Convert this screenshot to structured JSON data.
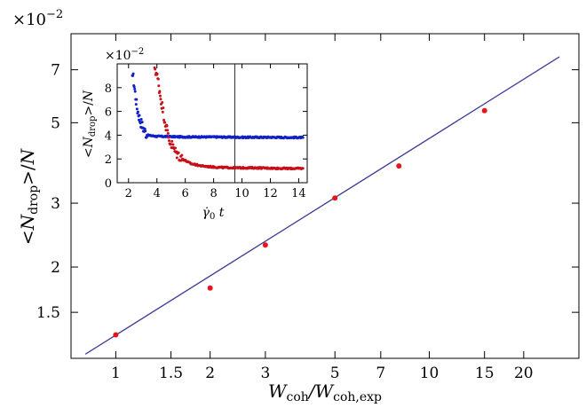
{
  "chart_data": [
    {
      "type": "scatter",
      "role": "main",
      "scale": {
        "x": "log",
        "y": "log"
      },
      "exponent_label": "×10",
      "exponent_value": "−2",
      "xlabel": "W_coh/W_coh,exp",
      "ylabel": "<N_drop>/N",
      "x_ticks": [
        1,
        1.5,
        2,
        3,
        5,
        7,
        10,
        15,
        20
      ],
      "x_tick_labels": [
        "1",
        "1.5",
        "2",
        "3",
        "5",
        "7",
        "10",
        "15",
        "20"
      ],
      "y_ticks": [
        1.5,
        2,
        3,
        5,
        7
      ],
      "y_tick_labels": [
        "1.5",
        "2",
        "3",
        "5",
        "7"
      ],
      "xlim": [
        0.72,
        30
      ],
      "ylim": [
        1.12,
        8.8
      ],
      "colors": {
        "points": "#e8141c",
        "fit": "#3f3f95"
      },
      "series": [
        {
          "kind": "points",
          "x": [
            1,
            2,
            3,
            5,
            8,
            15
          ],
          "y": [
            1.3,
            1.75,
            2.3,
            3.1,
            3.8,
            5.4
          ]
        },
        {
          "kind": "line",
          "x": [
            0.8,
            26
          ],
          "y": [
            1.15,
            7.6
          ]
        }
      ]
    },
    {
      "type": "scatter",
      "role": "inset",
      "exponent_label": "×10",
      "exponent_value": "−2",
      "xlabel": "γ̇₀ t",
      "ylabel": "<N_drop>/N",
      "x_ticks": [
        2,
        4,
        6,
        8,
        10,
        12,
        14
      ],
      "x_tick_labels": [
        "2",
        "4",
        "6",
        "8",
        "10",
        "12",
        "14"
      ],
      "y_ticks": [
        0,
        2,
        4,
        6,
        8
      ],
      "y_tick_labels": [
        "0",
        "2",
        "4",
        "6",
        "8"
      ],
      "xlim": [
        1.2,
        14.6
      ],
      "ylim": [
        0,
        10
      ],
      "vertical_line_x": 9.5,
      "colors": {
        "blue": "#1020c8",
        "red": "#c81018",
        "vline": "#000000"
      },
      "series": [
        {
          "color": "blue",
          "x": [
            2.2,
            2.4,
            2.6,
            2.8,
            3.0,
            3.3,
            4,
            6,
            8,
            10,
            12,
            14.3
          ],
          "y": [
            10,
            8.2,
            6.3,
            5.3,
            4.7,
            4.0,
            3.9,
            3.85,
            3.85,
            3.82,
            3.82,
            3.8
          ]
        },
        {
          "color": "red",
          "x": [
            3.8,
            4.1,
            4.3,
            4.6,
            4.9,
            5.3,
            5.8,
            6.4,
            7.2,
            8.2,
            9.5,
            11,
            13,
            14.3
          ],
          "y": [
            10,
            8.5,
            6.9,
            5.0,
            3.5,
            2.6,
            2.0,
            1.6,
            1.4,
            1.3,
            1.25,
            1.25,
            1.2,
            1.2
          ]
        }
      ]
    }
  ]
}
